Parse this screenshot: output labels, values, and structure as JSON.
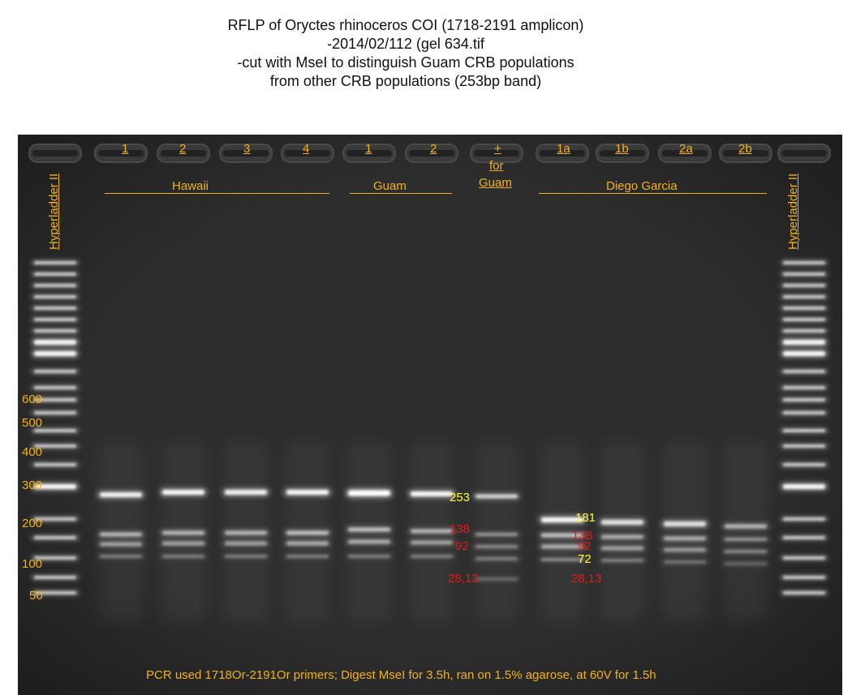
{
  "title_lines": [
    "RFLP of Oryctes rhinoceros COI (1718-2191 amplicon)",
    "-2014/02/112 (gel 634.tif",
    "-cut with MseI to distinguish Guam CRB populations",
    "from other CRB populations (253bp band)"
  ],
  "ladder_label": "Hyperladder II",
  "lanes": {
    "hawaii": [
      "1",
      "2",
      "3",
      "4"
    ],
    "guam": [
      "1",
      "2"
    ],
    "control": [
      "+",
      "for",
      "Guam"
    ],
    "diego": [
      "1a",
      "1b",
      "2a",
      "2b"
    ]
  },
  "groups": {
    "hawaii": "Hawaii",
    "guam": "Guam",
    "diego": "Diego Garcia"
  },
  "ladder_sizes": [
    "600",
    "500",
    "400",
    "300",
    "200",
    "100",
    "50"
  ],
  "band_sizes_control": {
    "b253": "253",
    "b138": "138",
    "b92": "92",
    "b28": "28,13"
  },
  "band_sizes_diego": {
    "b181": "181",
    "b138": "138",
    "b92": "92",
    "b72": "72",
    "b28": "28,13"
  },
  "footer": "PCR used 1718Or-2191Or primers; Digest MseI for 3.5h, ran on 1.5% agarose, at 60V for 1.5h",
  "colors": {
    "gel": "#2d2d2d",
    "label": "#f2b318",
    "size_highlight": "#ffff30",
    "size_red": "#e11a1a"
  }
}
